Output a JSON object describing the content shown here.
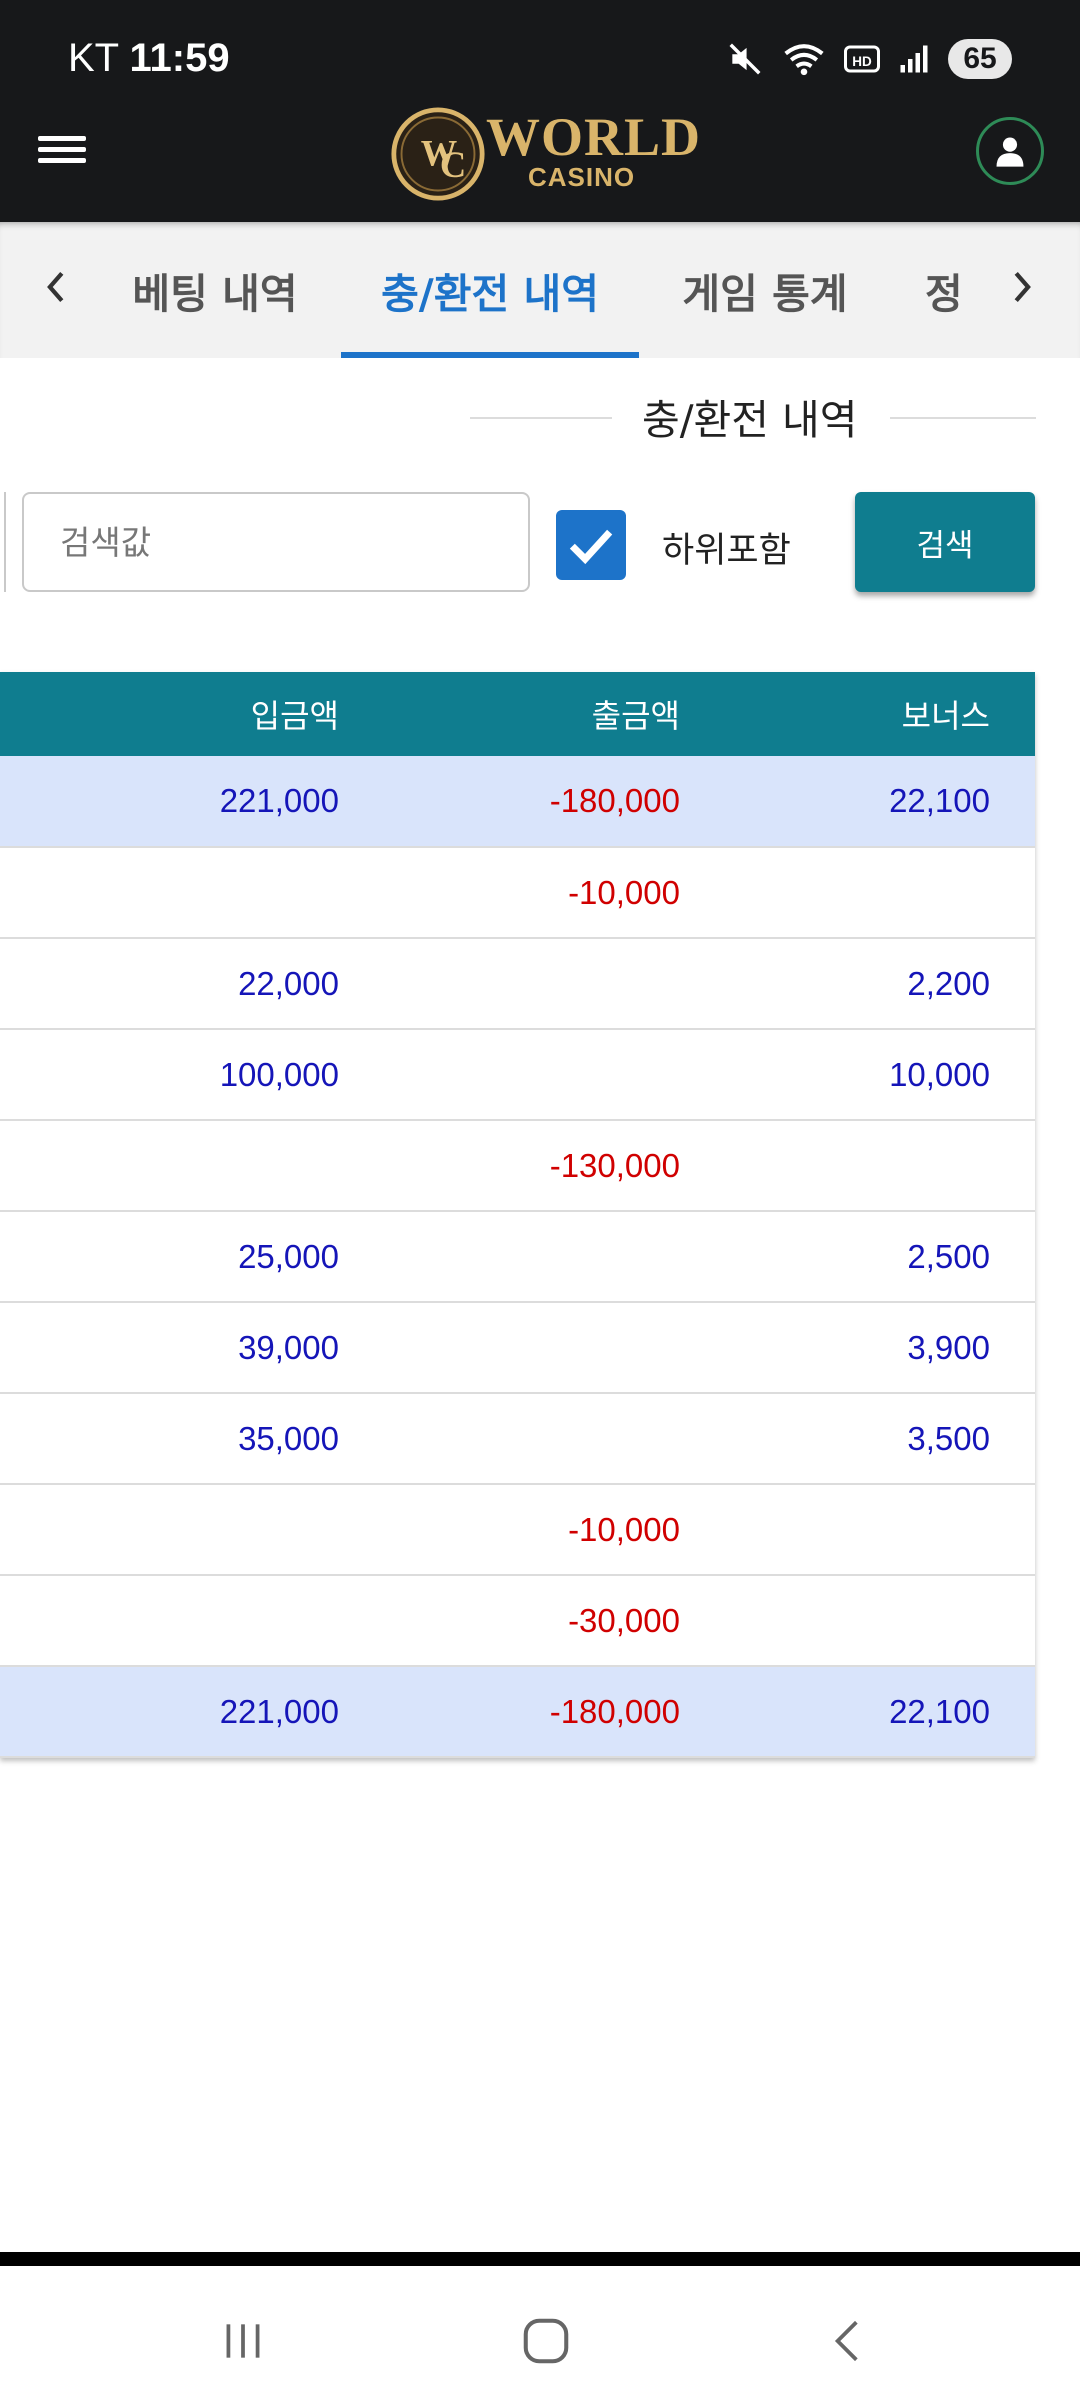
{
  "status_bar": {
    "carrier": "KT",
    "time": "11:59",
    "battery": "65"
  },
  "header": {
    "logo_line1": "WORLD",
    "logo_line2": "CASINO"
  },
  "tabs": [
    {
      "label": "베팅 내역",
      "active": false
    },
    {
      "label": "충/환전 내역",
      "active": true
    },
    {
      "label": "게임 통계",
      "active": false
    },
    {
      "label": "정",
      "active": false
    }
  ],
  "section_title": "충/환전 내역",
  "search": {
    "placeholder": "검색값",
    "value": "",
    "include_sub_label": "하위포함",
    "include_sub_checked": true,
    "button_label": "검색"
  },
  "table": {
    "columns": [
      "입금액",
      "출금액",
      "보너스"
    ],
    "rows": [
      {
        "deposit": "221,000",
        "withdraw": "-180,000",
        "bonus": "22,100",
        "highlight": true
      },
      {
        "deposit": "",
        "withdraw": "-10,000",
        "bonus": "",
        "highlight": false
      },
      {
        "deposit": "22,000",
        "withdraw": "",
        "bonus": "2,200",
        "highlight": false
      },
      {
        "deposit": "100,000",
        "withdraw": "",
        "bonus": "10,000",
        "highlight": false
      },
      {
        "deposit": "",
        "withdraw": "-130,000",
        "bonus": "",
        "highlight": false
      },
      {
        "deposit": "25,000",
        "withdraw": "",
        "bonus": "2,500",
        "highlight": false
      },
      {
        "deposit": "39,000",
        "withdraw": "",
        "bonus": "3,900",
        "highlight": false
      },
      {
        "deposit": "35,000",
        "withdraw": "",
        "bonus": "3,500",
        "highlight": false
      },
      {
        "deposit": "",
        "withdraw": "-10,000",
        "bonus": "",
        "highlight": false
      },
      {
        "deposit": "",
        "withdraw": "-30,000",
        "bonus": "",
        "highlight": false
      },
      {
        "deposit": "221,000",
        "withdraw": "-180,000",
        "bonus": "22,100",
        "highlight": true
      }
    ]
  },
  "colors": {
    "header_bg": "#17181a",
    "accent_blue": "#1d73c9",
    "table_header_bg": "#0f7d8f",
    "positive_text": "#1515b8",
    "negative_text": "#d00000",
    "highlight_row_bg": "#d9e4fb"
  },
  "icons": {
    "menu": "hamburger-menu-icon",
    "profile": "user-icon",
    "tab_prev": "chevron-left-icon",
    "tab_next": "chevron-right-icon",
    "checkbox": "checkmark-icon"
  }
}
